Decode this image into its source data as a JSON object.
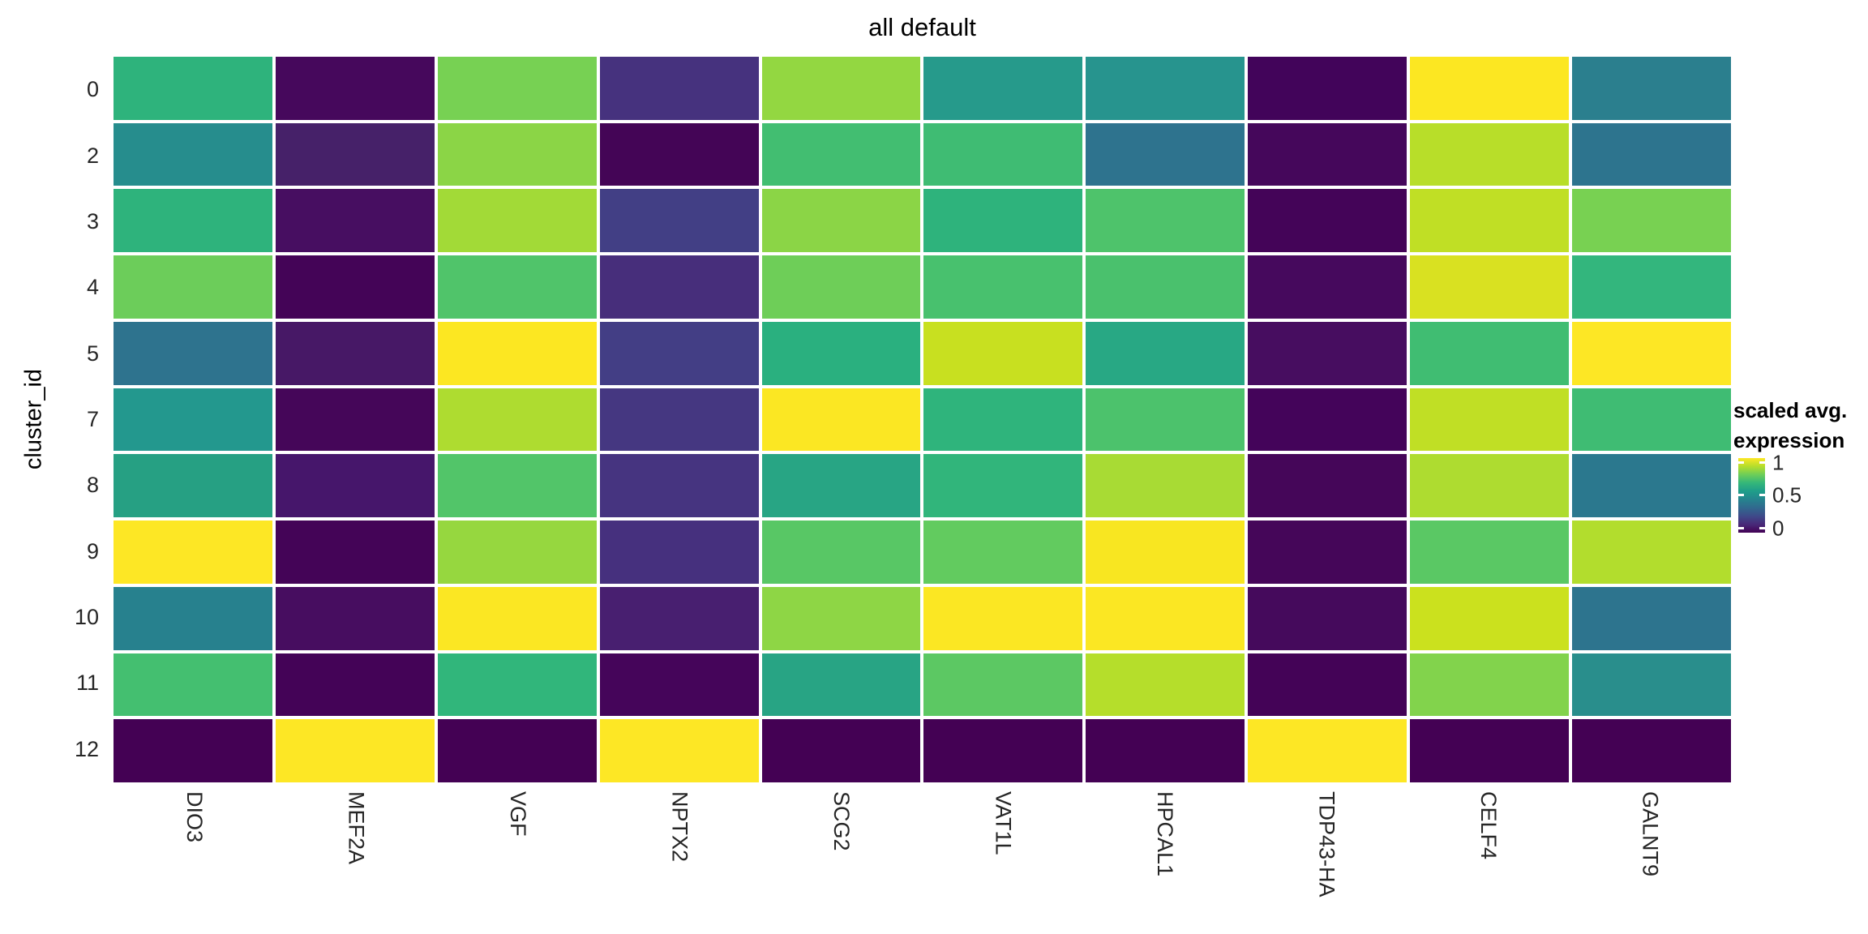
{
  "title": "all default",
  "y_axis": {
    "label": "cluster_id",
    "ticks": [
      "0",
      "2",
      "3",
      "4",
      "5",
      "7",
      "8",
      "9",
      "10",
      "11",
      "12"
    ]
  },
  "x_axis": {
    "ticks": [
      "DIO3",
      "MEF2A",
      "VGF",
      "NPTX2",
      "SCG2",
      "VAT1L",
      "HPCAL1",
      "TDP43-HA",
      "CELF4",
      "GALNT9"
    ]
  },
  "legend": {
    "title_line1": "scaled avg.",
    "title_line2": "expression",
    "tick_labels": [
      "1",
      "0.5",
      "0"
    ],
    "colormap": "viridis",
    "color_max": "#fde725",
    "color_mid": "#21918c",
    "color_min": "#440154"
  },
  "colors": {
    "background": "#ffffff",
    "grid_gap": "#ffffff",
    "text": "#262626",
    "title_text": "#000000"
  },
  "chart_data": {
    "type": "heatmap",
    "title": "all default",
    "ylabel": "cluster_id",
    "xlabel": "",
    "legend_title": "scaled avg. expression",
    "value_range": [
      0,
      1
    ],
    "rows": [
      "0",
      "2",
      "3",
      "4",
      "5",
      "7",
      "8",
      "9",
      "10",
      "11",
      "12"
    ],
    "columns": [
      "DIO3",
      "MEF2A",
      "VGF",
      "NPTX2",
      "SCG2",
      "VAT1L",
      "HPCAL1",
      "TDP43-HA",
      "CELF4",
      "GALNT9"
    ],
    "values": [
      [
        0.64,
        0.02,
        0.81,
        0.12,
        0.87,
        0.54,
        0.51,
        0.01,
        0.99,
        0.43
      ],
      [
        0.47,
        0.07,
        0.86,
        0.0,
        0.69,
        0.68,
        0.37,
        0.02,
        0.9,
        0.38
      ],
      [
        0.64,
        0.03,
        0.88,
        0.17,
        0.86,
        0.64,
        0.72,
        0.01,
        0.91,
        0.81
      ],
      [
        0.78,
        0.01,
        0.72,
        0.1,
        0.78,
        0.7,
        0.71,
        0.02,
        0.94,
        0.65
      ],
      [
        0.37,
        0.05,
        0.99,
        0.17,
        0.62,
        0.92,
        0.6,
        0.03,
        0.68,
        1.0
      ],
      [
        0.53,
        0.01,
        0.89,
        0.14,
        0.99,
        0.64,
        0.71,
        0.01,
        0.91,
        0.68
      ],
      [
        0.58,
        0.05,
        0.72,
        0.13,
        0.59,
        0.63,
        0.88,
        0.01,
        0.89,
        0.4
      ],
      [
        1.0,
        0.01,
        0.87,
        0.11,
        0.74,
        0.77,
        0.98,
        0.01,
        0.74,
        0.89
      ],
      [
        0.44,
        0.03,
        0.99,
        0.07,
        0.86,
        0.99,
        0.99,
        0.02,
        0.93,
        0.38
      ],
      [
        0.7,
        0.01,
        0.64,
        0.01,
        0.59,
        0.75,
        0.9,
        0.01,
        0.84,
        0.49
      ],
      [
        0.0,
        1.0,
        0.0,
        1.0,
        0.0,
        0.0,
        0.0,
        1.0,
        0.0,
        0.0
      ]
    ],
    "cell_colors": [
      [
        "#2eb37c",
        "#46085c",
        "#77d153",
        "#46327e",
        "#93d741",
        "#269a8b",
        "#27948e",
        "#42045a",
        "#fce722",
        "#2b7f8e"
      ],
      [
        "#268d8d",
        "#462169",
        "#8bd546",
        "#440556",
        "#42be71",
        "#3fbc73",
        "#2e738e",
        "#45075b",
        "#b8de29",
        "#2d748e"
      ],
      [
        "#2eb37c",
        "#470e61",
        "#a2da37",
        "#423f85",
        "#8bd546",
        "#2eb37c",
        "#4ec36b",
        "#440458",
        "#c0df25",
        "#78d152"
      ],
      [
        "#6ccd5a",
        "#440457",
        "#50c46a",
        "#472e7b",
        "#6ece58",
        "#48c16e",
        "#4ac16d",
        "#46095d",
        "#d9e121",
        "#33b67d"
      ],
      [
        "#2e738e",
        "#471866",
        "#fce722",
        "#433e85",
        "#2ab07f",
        "#c8e020",
        "#28a884",
        "#470d60",
        "#40bd72",
        "#fde725"
      ],
      [
        "#23988e",
        "#450659",
        "#aedc30",
        "#453781",
        "#fbe723",
        "#2fb47c",
        "#4cc26c",
        "#44045a",
        "#c0df25",
        "#3fbc73"
      ],
      [
        "#26a083",
        "#46166b",
        "#52c569",
        "#463480",
        "#28a584",
        "#31b57b",
        "#a8db34",
        "#450659",
        "#aedc30",
        "#2b788e"
      ],
      [
        "#fde725",
        "#440457",
        "#96d73f",
        "#46307e",
        "#58c765",
        "#62cb5f",
        "#f8e621",
        "#450659",
        "#5ac864",
        "#b2dd2d"
      ],
      [
        "#27818e",
        "#470d60",
        "#fbe723",
        "#481f70",
        "#8ed645",
        "#fbe723",
        "#fbe723",
        "#450a5c",
        "#cbe11e",
        "#2d748e"
      ],
      [
        "#44bf70",
        "#440357",
        "#31b67b",
        "#45055a",
        "#28a484",
        "#5cc863",
        "#b5de2b",
        "#440357",
        "#82d34c",
        "#298e8c"
      ],
      [
        "#440154",
        "#fde725",
        "#440154",
        "#fde725",
        "#440154",
        "#440154",
        "#440154",
        "#fde725",
        "#440154",
        "#440154"
      ]
    ]
  }
}
